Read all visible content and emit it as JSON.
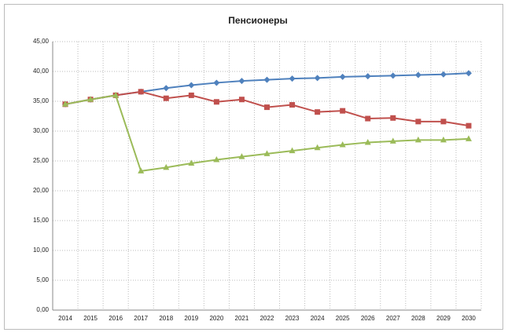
{
  "chart_data": {
    "type": "line",
    "title": "Пенсионеры",
    "categories": [
      "2014",
      "2015",
      "2016",
      "2017",
      "2018",
      "2019",
      "2020",
      "2021",
      "2022",
      "2023",
      "2024",
      "2025",
      "2026",
      "2027",
      "2028",
      "2029",
      "2030"
    ],
    "series": [
      {
        "color": "#4f81bd",
        "marker": "diamond",
        "values": [
          34.5,
          35.3,
          36.0,
          36.6,
          37.2,
          37.7,
          38.1,
          38.4,
          38.6,
          38.8,
          38.9,
          39.1,
          39.2,
          39.3,
          39.4,
          39.5,
          39.7
        ]
      },
      {
        "color": "#c0504d",
        "marker": "square",
        "values": [
          34.5,
          35.3,
          36.0,
          36.6,
          35.5,
          36.0,
          34.9,
          35.3,
          34.0,
          34.4,
          33.2,
          33.4,
          32.1,
          32.2,
          31.6,
          31.6,
          30.9
        ]
      },
      {
        "color": "#9bbb59",
        "marker": "triangle",
        "values": [
          34.5,
          35.3,
          36.0,
          23.3,
          23.9,
          24.6,
          25.2,
          25.7,
          26.2,
          26.7,
          27.2,
          27.7,
          28.1,
          28.3,
          28.5,
          28.5,
          28.7
        ]
      }
    ],
    "ylim": [
      0,
      45
    ],
    "yticks": [
      {
        "value": 0,
        "label": "0,00"
      },
      {
        "value": 5,
        "label": "5,00"
      },
      {
        "value": 10,
        "label": "10,00"
      },
      {
        "value": 15,
        "label": "15,00"
      },
      {
        "value": 20,
        "label": "20,00"
      },
      {
        "value": 25,
        "label": "25,00"
      },
      {
        "value": 30,
        "label": "30,00"
      },
      {
        "value": 35,
        "label": "35,00"
      },
      {
        "value": 40,
        "label": "40,00"
      },
      {
        "value": 45,
        "label": "45,00"
      }
    ],
    "grid": true
  }
}
